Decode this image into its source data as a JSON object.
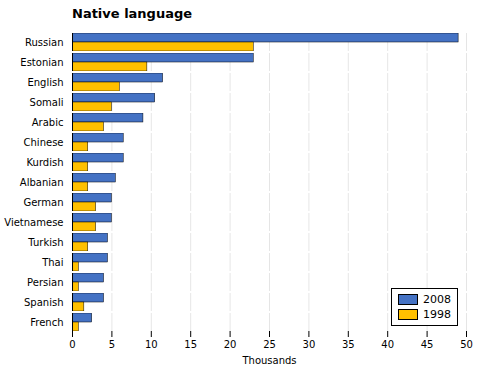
{
  "chart_data": {
    "type": "bar",
    "orientation": "horizontal",
    "title": "Native language",
    "xlabel": "Thousands",
    "categories": [
      "Russian",
      "Estonian",
      "English",
      "Somali",
      "Arabic",
      "Chinese",
      "Kurdish",
      "Albanian",
      "German",
      "Vietnamese",
      "Turkish",
      "Thai",
      "Persian",
      "Spanish",
      "French"
    ],
    "series": [
      {
        "name": "2008",
        "color": "#4472c4",
        "values": [
          49,
          23,
          11.5,
          10.5,
          9,
          6.5,
          6.5,
          5.5,
          5,
          5,
          4.5,
          4.5,
          4,
          4,
          2.5
        ]
      },
      {
        "name": "1998",
        "color": "#ffc000",
        "values": [
          23,
          9.5,
          6,
          5,
          4,
          2,
          2,
          2,
          3,
          3,
          2,
          0.8,
          0.8,
          1.5,
          0.8
        ]
      }
    ],
    "xlim": [
      0,
      50
    ],
    "xticks": [
      0,
      5,
      10,
      15,
      20,
      25,
      30,
      35,
      40,
      45,
      50
    ],
    "grid": true,
    "legend": "lower right"
  }
}
